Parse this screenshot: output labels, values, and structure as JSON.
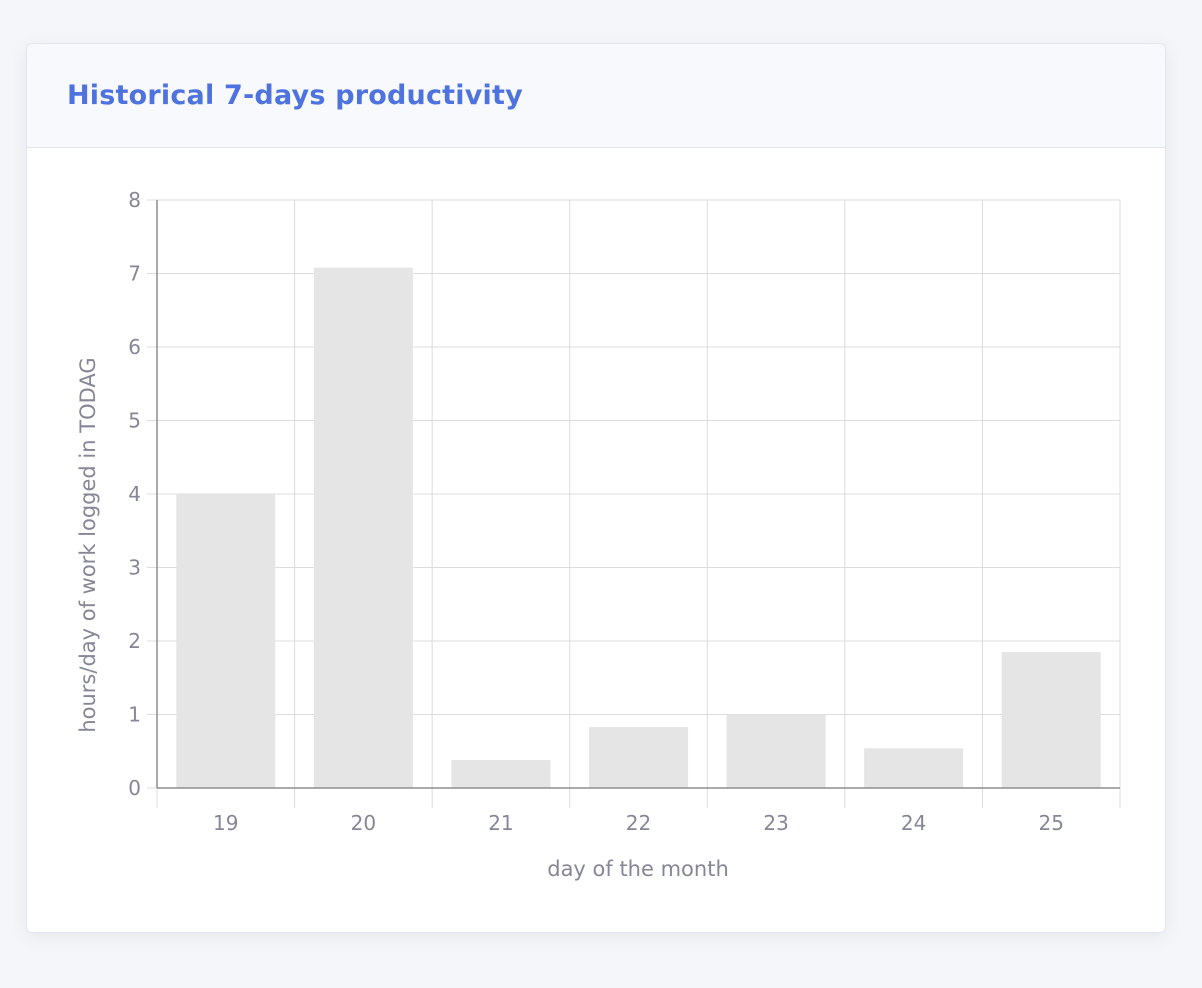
{
  "card": {
    "title": "Historical 7-days productivity"
  },
  "chart_data": {
    "type": "bar",
    "categories": [
      "19",
      "20",
      "21",
      "22",
      "23",
      "24",
      "25"
    ],
    "values": [
      4.0,
      7.08,
      0.38,
      0.83,
      1.0,
      0.54,
      1.85
    ],
    "xlabel": "day of the month",
    "ylabel": "hours/day of work logged in TODAG",
    "ylim": [
      0,
      8
    ],
    "yticks": [
      0,
      1,
      2,
      3,
      4,
      5,
      6,
      7,
      8
    ],
    "grid": true,
    "bar_color": "#e5e5e5",
    "grid_color": "#dcdcdc",
    "axis_color": "#8e8e8e",
    "text_color": "#858796"
  }
}
